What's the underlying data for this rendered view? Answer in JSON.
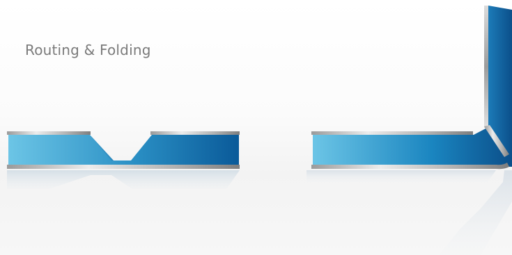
{
  "caption": "Routing & Folding",
  "illustrations": [
    {
      "name": "routed-panel",
      "description_icon": "v-groove-routed-panel"
    },
    {
      "name": "folded-panel",
      "description_icon": "folded-panel-corner"
    }
  ],
  "colors": {
    "panel_light": "#6cc5e6",
    "panel_mid": "#2a8fc4",
    "panel_dark": "#0a5a99",
    "panel_darkest": "#0b4f8a",
    "metal_light": "#e8e8e8",
    "metal_dark": "#8a8a8a",
    "caption_text": "#7a7a7a"
  }
}
